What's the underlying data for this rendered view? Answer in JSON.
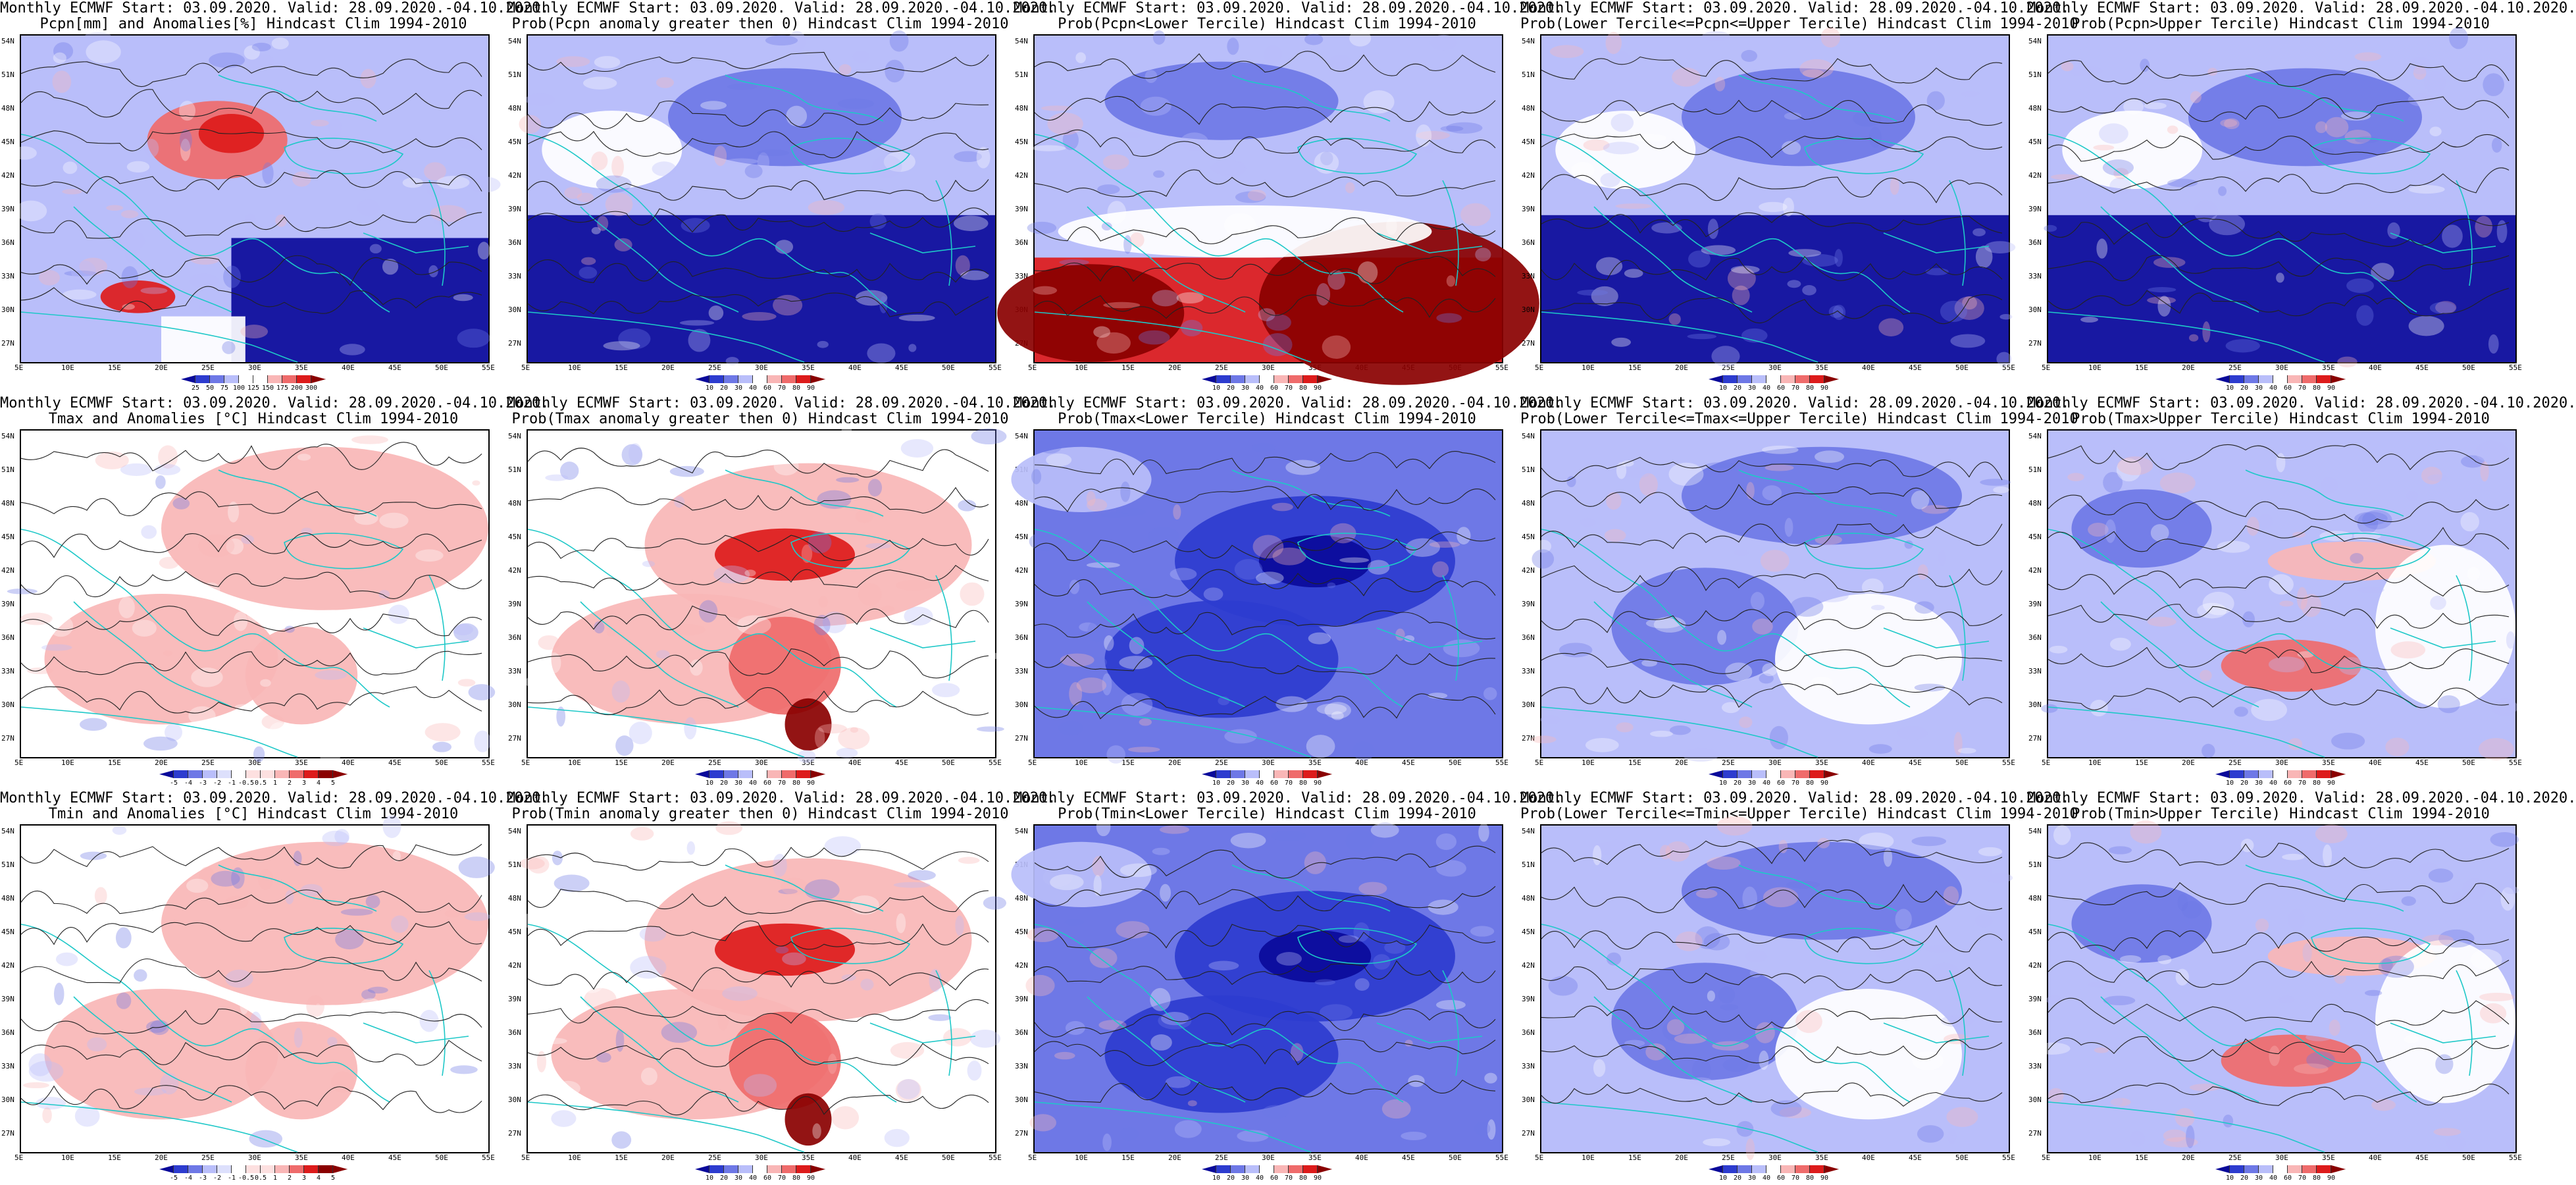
{
  "lat_labels": [
    "54N",
    "51N",
    "48N",
    "45N",
    "42N",
    "39N",
    "36N",
    "33N",
    "30N",
    "27N"
  ],
  "lon_labels": [
    "5E",
    "10E",
    "15E",
    "20E",
    "25E",
    "30E",
    "35E",
    "40E",
    "45E",
    "50E",
    "55E"
  ],
  "colors": {
    "deep_blue": "#0a0a9a",
    "blue": "#2d3ccf",
    "mid_blue": "#6e78e6",
    "light_blue": "#b9befa",
    "white": "#ffffff",
    "light_red": "#f9b6b6",
    "mid_red": "#ef6b6b",
    "red": "#dd1b1b",
    "dark_red": "#8a0000",
    "coast": "#1ec8c8",
    "contour": "#222222"
  },
  "panels": [
    {
      "row": 0,
      "col": 0,
      "kind": "anomaly",
      "title1": "Monthly ECMWF Start: 03.09.2020. Valid: 28.09.2020.-04.10.2020.",
      "title2": "Pcpn[mm] and Anomalies[%] Hindcast Clim 1994-2010",
      "colorbar": [
        "25",
        "50",
        "75",
        "100",
        "125",
        "150",
        "175",
        "200",
        "300"
      ]
    },
    {
      "row": 0,
      "col": 1,
      "kind": "prob_low",
      "title1": "Monthly ECMWF Start: 03.09.2020. Valid: 28.09.2020.-04.10.2020.",
      "title2": "Prob(Pcpn anomaly greater then 0) Hindcast Clim 1994-2010",
      "colorbar": [
        "10",
        "20",
        "30",
        "40",
        "60",
        "70",
        "80",
        "90"
      ]
    },
    {
      "row": 0,
      "col": 2,
      "kind": "prob_high",
      "title1": "Monthly ECMWF Start: 03.09.2020. Valid: 28.09.2020.-04.10.2020.",
      "title2": "Prob(Pcpn<Lower Tercile) Hindcast Clim 1994-2010",
      "colorbar": [
        "10",
        "20",
        "30",
        "40",
        "60",
        "70",
        "80",
        "90"
      ]
    },
    {
      "row": 0,
      "col": 3,
      "kind": "prob_low",
      "title1": "Monthly ECMWF Start: 03.09.2020. Valid: 28.09.2020.-04.10.2020.",
      "title2": "Prob(Lower Tercile<=Pcpn<=Upper Tercile) Hindcast Clim 1994-2010",
      "colorbar": [
        "10",
        "20",
        "30",
        "40",
        "60",
        "70",
        "80",
        "90"
      ]
    },
    {
      "row": 0,
      "col": 4,
      "kind": "prob_low",
      "title1": "Monthly ECMWF Start: 03.09.2020. Valid: 28.09.2020.-04.10.2020.",
      "title2": "Prob(Pcpn>Upper Tercile) Hindcast Clim 1994-2010",
      "colorbar": [
        "10",
        "20",
        "30",
        "40",
        "60",
        "70",
        "80",
        "90"
      ]
    },
    {
      "row": 1,
      "col": 0,
      "kind": "warm_light",
      "title1": "Monthly ECMWF Start: 03.09.2020. Valid: 28.09.2020.-04.10.2020.",
      "title2": "Tmax and Anomalies [°C] Hindcast Clim 1994-2010",
      "colorbar": [
        "-5",
        "-4",
        "-3",
        "-2",
        "-1",
        "-0.5",
        "0.5",
        "1",
        "2",
        "3",
        "4",
        "5"
      ]
    },
    {
      "row": 1,
      "col": 1,
      "kind": "warm",
      "title1": "Monthly ECMWF Start: 03.09.2020. Valid: 28.09.2020.-04.10.2020.",
      "title2": "Prob(Tmax anomaly greater then 0) Hindcast Clim 1994-2010",
      "colorbar": [
        "10",
        "20",
        "30",
        "40",
        "60",
        "70",
        "80",
        "90"
      ]
    },
    {
      "row": 1,
      "col": 2,
      "kind": "cold",
      "title1": "Monthly ECMWF Start: 03.09.2020. Valid: 28.09.2020.-04.10.2020.",
      "title2": "Prob(Tmax<Lower Tercile) Hindcast Clim 1994-2010",
      "colorbar": [
        "10",
        "20",
        "30",
        "40",
        "60",
        "70",
        "80",
        "90"
      ]
    },
    {
      "row": 1,
      "col": 3,
      "kind": "cool",
      "title1": "Monthly ECMWF Start: 03.09.2020. Valid: 28.09.2020.-04.10.2020.",
      "title2": "Prob(Lower Tercile<=Tmax<=Upper Tercile) Hindcast Clim 1994-2010",
      "colorbar": [
        "10",
        "20",
        "30",
        "40",
        "60",
        "70",
        "80",
        "90"
      ]
    },
    {
      "row": 1,
      "col": 4,
      "kind": "mixed",
      "title1": "Monthly ECMWF Start: 03.09.2020. Valid: 28.09.2020.-04.10.2020.",
      "title2": "Prob(Tmax>Upper Tercile) Hindcast Clim 1994-2010",
      "colorbar": [
        "10",
        "20",
        "30",
        "40",
        "60",
        "70",
        "80",
        "90"
      ]
    },
    {
      "row": 2,
      "col": 0,
      "kind": "warm_light",
      "title1": "Monthly ECMWF Start: 03.09.2020. Valid: 28.09.2020.-04.10.2020.",
      "title2": "Tmin and Anomalies [°C] Hindcast Clim 1994-2010",
      "colorbar": [
        "-5",
        "-4",
        "-3",
        "-2",
        "-1",
        "-0.5",
        "0.5",
        "1",
        "2",
        "3",
        "4",
        "5"
      ]
    },
    {
      "row": 2,
      "col": 1,
      "kind": "warm",
      "title1": "Monthly ECMWF Start: 03.09.2020. Valid: 28.09.2020.-04.10.2020.",
      "title2": "Prob(Tmin anomaly greater then 0) Hindcast Clim 1994-2010",
      "colorbar": [
        "10",
        "20",
        "30",
        "40",
        "60",
        "70",
        "80",
        "90"
      ]
    },
    {
      "row": 2,
      "col": 2,
      "kind": "cold",
      "title1": "Monthly ECMWF Start: 03.09.2020. Valid: 28.09.2020.-04.10.2020.",
      "title2": "Prob(Tmin<Lower Tercile) Hindcast Clim 1994-2010",
      "colorbar": [
        "10",
        "20",
        "30",
        "40",
        "60",
        "70",
        "80",
        "90"
      ]
    },
    {
      "row": 2,
      "col": 3,
      "kind": "cool",
      "title1": "Monthly ECMWF Start: 03.09.2020. Valid: 28.09.2020.-04.10.2020.",
      "title2": "Prob(Lower Tercile<=Tmin<=Upper Tercile) Hindcast Clim 1994-2010",
      "colorbar": [
        "10",
        "20",
        "30",
        "40",
        "60",
        "70",
        "80",
        "90"
      ]
    },
    {
      "row": 2,
      "col": 4,
      "kind": "mixed",
      "title1": "Monthly ECMWF Start: 03.09.2020. Valid: 28.09.2020.-04.10.2020.",
      "title2": "Prob(Tmin>Upper Tercile) Hindcast Clim 1994-2010",
      "colorbar": [
        "10",
        "20",
        "30",
        "40",
        "60",
        "70",
        "80",
        "90"
      ]
    }
  ]
}
